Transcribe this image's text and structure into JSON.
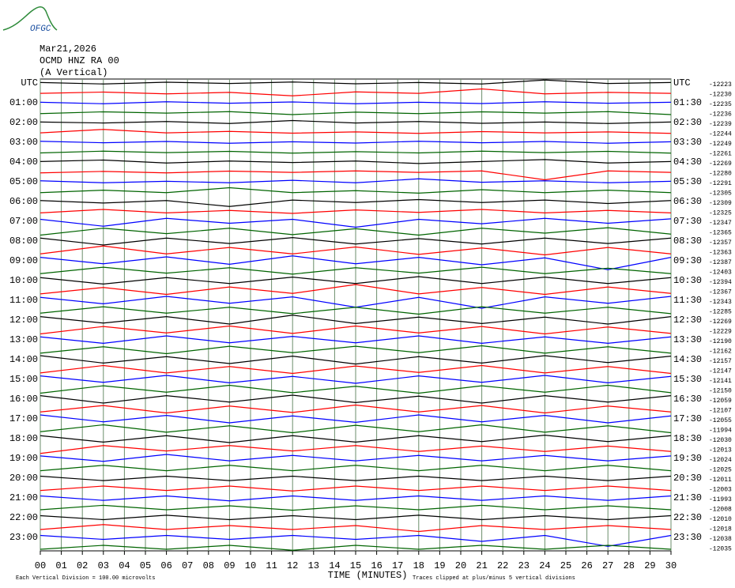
{
  "chart_data": {
    "type": "helicorder",
    "logo": "OFGC",
    "title": "Mar21,2026",
    "subtitle": [
      "OCMD HNZ RA 00",
      "(A Vertical)"
    ],
    "xlabel": "TIME (MINUTES)",
    "notes": [
      "Each Vertical Division =  100.00 microvolts",
      "Traces clipped at plus/minus 5 vertical divisions"
    ],
    "xlim": [
      0,
      30
    ],
    "xticks": [
      {
        "value": 0,
        "label": "00"
      },
      {
        "value": 1,
        "label": "01"
      },
      {
        "value": 2,
        "label": "02"
      },
      {
        "value": 3,
        "label": "03"
      },
      {
        "value": 4,
        "label": "04"
      },
      {
        "value": 5,
        "label": "05"
      },
      {
        "value": 6,
        "label": "06"
      },
      {
        "value": 7,
        "label": "07"
      },
      {
        "value": 8,
        "label": "08"
      },
      {
        "value": 9,
        "label": "09"
      },
      10,
      11,
      12,
      13,
      14,
      15,
      16,
      17,
      18,
      19,
      20,
      21,
      22,
      23,
      24,
      25,
      26,
      27,
      28,
      29,
      30
    ],
    "row_labels": [
      {
        "left": "UTC",
        "right": "UTC"
      },
      {
        "left": "01:00",
        "right": "01:30"
      },
      {
        "left": "02:00",
        "right": "02:30"
      },
      {
        "left": "03:00",
        "right": "03:30"
      },
      {
        "left": "04:00",
        "right": "04:30"
      },
      {
        "left": "05:00",
        "right": "05:30"
      },
      {
        "left": "06:00",
        "right": "06:30"
      },
      {
        "left": "07:00",
        "right": "07:30"
      },
      {
        "left": "08:00",
        "right": "08:30"
      },
      {
        "left": "09:00",
        "right": "09:30"
      },
      {
        "left": "10:00",
        "right": "10:30"
      },
      {
        "left": "11:00",
        "right": "11:30"
      },
      {
        "left": "12:00",
        "right": "12:30"
      },
      {
        "left": "13:00",
        "right": "13:30"
      },
      {
        "left": "14:00",
        "right": "14:30"
      },
      {
        "left": "15:00",
        "right": "15:30"
      },
      {
        "left": "16:00",
        "right": "16:30"
      },
      {
        "left": "17:00",
        "right": "17:30"
      },
      {
        "left": "18:00",
        "right": "18:30"
      },
      {
        "left": "19:00",
        "right": "19:30"
      },
      {
        "left": "20:00",
        "right": "20:30"
      },
      {
        "left": "21:00",
        "right": "21:30"
      },
      {
        "left": "22:00",
        "right": "22:30"
      },
      {
        "left": "23:00",
        "right": "23:30"
      }
    ],
    "x": [
      0,
      3,
      6,
      9,
      12,
      15,
      18,
      21,
      24,
      27,
      30
    ],
    "series": [
      {
        "color": "#000000",
        "offset": -12223,
        "values": [
          0.05,
          -0.1,
          0.08,
          -0.05,
          0.1,
          -0.08,
          0.05,
          -0.1,
          0.3,
          -0.05,
          0.05
        ]
      },
      {
        "color": "#ff0000",
        "offset": -12230,
        "values": [
          -0.05,
          0.08,
          -0.1,
          0.05,
          -0.3,
          0.1,
          -0.05,
          0.4,
          -0.1,
          0.05,
          -0.05
        ]
      },
      {
        "color": "#0000ff",
        "offset": -12235,
        "values": [
          0.05,
          -0.1,
          0.1,
          -0.05,
          0.08,
          -0.1,
          0.05,
          -0.08,
          0.1,
          -0.05,
          0.05
        ]
      },
      {
        "color": "#006400",
        "offset": -12236,
        "values": [
          -0.1,
          0.08,
          -0.05,
          0.1,
          -0.2,
          0.05,
          -0.1,
          0.08,
          -0.05,
          0.1,
          -0.2
        ]
      },
      {
        "color": "#000000",
        "offset": -12239,
        "values": [
          0.05,
          -0.05,
          0.1,
          -0.1,
          0.2,
          -0.05,
          0.1,
          -0.08,
          0.05,
          -0.1,
          0.05
        ]
      },
      {
        "color": "#ff0000",
        "offset": -12244,
        "values": [
          -0.05,
          0.3,
          -0.05,
          0.1,
          -0.08,
          0.05,
          -0.1,
          0.08,
          -0.05,
          0.05,
          -0.1
        ]
      },
      {
        "color": "#0000ff",
        "offset": -12249,
        "values": [
          0.1,
          -0.05,
          0.08,
          -0.1,
          0.05,
          -0.08,
          0.1,
          -0.05,
          0.08,
          -0.1,
          0.05
        ]
      },
      {
        "color": "#006400",
        "offset": -12261,
        "values": [
          -0.08,
          0.1,
          -0.05,
          0.08,
          -0.1,
          0.05,
          -0.08,
          0.1,
          -0.05,
          0.08,
          -0.1
        ]
      },
      {
        "color": "#000000",
        "offset": -12269,
        "values": [
          0.05,
          0.2,
          -0.1,
          0.1,
          -0.05,
          0.1,
          -0.15,
          0.05,
          0.25,
          -0.1,
          0.05
        ]
      },
      {
        "color": "#ff0000",
        "offset": -12280,
        "values": [
          -0.1,
          0.05,
          -0.1,
          0.08,
          -0.05,
          0.1,
          -0.05,
          0.1,
          -0.8,
          0.1,
          -0.05
        ]
      },
      {
        "color": "#0000ff",
        "offset": -12291,
        "values": [
          0.1,
          -0.1,
          0.05,
          -0.1,
          0.15,
          -0.1,
          0.3,
          -0.05,
          0.1,
          -0.1,
          0.05
        ]
      },
      {
        "color": "#006400",
        "offset": -12305,
        "values": [
          -0.1,
          0.15,
          -0.1,
          0.4,
          -0.1,
          0.1,
          -0.15,
          0.2,
          -0.1,
          0.15,
          -0.1
        ]
      },
      {
        "color": "#000000",
        "offset": -12309,
        "values": [
          0.1,
          -0.15,
          0.1,
          -0.5,
          0.15,
          -0.1,
          0.2,
          -0.1,
          0.15,
          -0.2,
          0.1
        ]
      },
      {
        "color": "#ff0000",
        "offset": -12325,
        "values": [
          -0.15,
          0.2,
          -0.15,
          0.1,
          -0.2,
          0.15,
          -0.1,
          0.2,
          -0.15,
          0.1,
          -0.15
        ]
      },
      {
        "color": "#0000ff",
        "offset": -12347,
        "values": [
          0.2,
          -0.5,
          0.3,
          -0.2,
          0.2,
          -0.6,
          0.2,
          -0.25,
          0.3,
          -0.2,
          0.25
        ]
      },
      {
        "color": "#006400",
        "offset": -12365,
        "values": [
          -0.4,
          0.3,
          -0.25,
          0.3,
          -0.35,
          0.25,
          -0.4,
          0.3,
          -0.2,
          0.35,
          -0.3
        ]
      },
      {
        "color": "#000000",
        "offset": -12357,
        "values": [
          0.3,
          -0.4,
          0.3,
          -0.25,
          0.35,
          -0.3,
          0.25,
          -0.3,
          0.3,
          -0.25,
          0.3
        ]
      },
      {
        "color": "#ff0000",
        "offset": -12363,
        "values": [
          -0.3,
          0.5,
          -0.3,
          0.35,
          -0.3,
          0.4,
          -0.35,
          0.3,
          -0.4,
          0.35,
          -0.3
        ]
      },
      {
        "color": "#0000ff",
        "offset": -12387,
        "values": [
          0.35,
          -0.3,
          0.4,
          -0.35,
          0.5,
          -0.3,
          0.35,
          -0.4,
          0.3,
          -0.9,
          0.35
        ]
      },
      {
        "color": "#006400",
        "offset": -12403,
        "values": [
          -0.3,
          0.35,
          -0.25,
          0.3,
          -0.35,
          0.3,
          -0.25,
          0.35,
          -0.3,
          0.25,
          -0.3
        ]
      },
      {
        "color": "#000000",
        "offset": -12394,
        "values": [
          0.3,
          -0.35,
          0.3,
          -0.3,
          0.35,
          -0.3,
          0.4,
          -0.3,
          0.35,
          -0.3,
          0.3
        ]
      },
      {
        "color": "#ff0000",
        "offset": -12367,
        "values": [
          -0.35,
          0.3,
          -0.4,
          0.35,
          -0.3,
          0.6,
          -0.35,
          0.3,
          -0.4,
          0.35,
          -0.3
        ]
      },
      {
        "color": "#0000ff",
        "offset": -12343,
        "values": [
          0.3,
          -0.35,
          0.4,
          -0.3,
          0.35,
          -0.7,
          0.3,
          -0.8,
          0.35,
          -0.3,
          0.4
        ]
      },
      {
        "color": "#006400",
        "offset": -12285,
        "values": [
          -0.3,
          0.35,
          -0.3,
          0.3,
          -0.35,
          0.3,
          -0.4,
          0.35,
          -0.3,
          0.3,
          -0.35
        ]
      },
      {
        "color": "#000000",
        "offset": -12269,
        "values": [
          0.35,
          -0.3,
          0.35,
          -0.4,
          0.5,
          -0.35,
          0.3,
          -0.35,
          0.3,
          -0.4,
          0.35
        ]
      },
      {
        "color": "#ff0000",
        "offset": -12229,
        "values": [
          -0.4,
          0.35,
          -0.3,
          0.4,
          -0.35,
          0.4,
          -0.3,
          0.35,
          -0.4,
          0.3,
          -0.35
        ]
      },
      {
        "color": "#0000ff",
        "offset": -12190,
        "values": [
          0.3,
          -0.35,
          0.4,
          -0.3,
          0.35,
          -0.3,
          0.4,
          -0.35,
          0.3,
          -0.35,
          0.3
        ]
      },
      {
        "color": "#006400",
        "offset": -12162,
        "values": [
          -0.35,
          0.3,
          -0.4,
          0.35,
          -0.3,
          0.35,
          -0.3,
          0.4,
          -0.35,
          0.3,
          -0.35
        ]
      },
      {
        "color": "#000000",
        "offset": -12157,
        "values": [
          0.4,
          -0.35,
          0.3,
          -0.4,
          0.35,
          -0.45,
          0.3,
          -0.35,
          0.4,
          -0.3,
          0.35
        ]
      },
      {
        "color": "#ff0000",
        "offset": -12147,
        "values": [
          -0.35,
          0.4,
          -0.35,
          0.3,
          -0.4,
          0.35,
          -0.3,
          0.4,
          -0.35,
          0.3,
          -0.4
        ]
      },
      {
        "color": "#0000ff",
        "offset": -12141,
        "values": [
          0.35,
          -0.3,
          0.4,
          -0.35,
          0.3,
          -0.4,
          0.35,
          -0.3,
          0.4,
          -0.35,
          0.3
        ]
      },
      {
        "color": "#006400",
        "offset": -12150,
        "values": [
          -0.4,
          0.35,
          -0.3,
          0.4,
          -0.35,
          0.3,
          -0.4,
          0.35,
          -0.3,
          0.4,
          -0.35
        ]
      },
      {
        "color": "#000000",
        "offset": -12059,
        "values": [
          0.35,
          -0.4,
          0.35,
          -0.3,
          0.4,
          -0.35,
          0.3,
          -0.4,
          0.35,
          -0.3,
          0.35
        ]
      },
      {
        "color": "#ff0000",
        "offset": -12107,
        "values": [
          -0.3,
          0.35,
          -0.4,
          0.3,
          -0.35,
          0.4,
          -0.3,
          0.35,
          -0.4,
          0.3,
          -0.3
        ]
      },
      {
        "color": "#0000ff",
        "offset": -12055,
        "values": [
          0.4,
          -0.3,
          0.35,
          -0.4,
          0.3,
          -0.35,
          0.4,
          -0.3,
          0.35,
          -0.4,
          0.3
        ]
      },
      {
        "color": "#006400",
        "offset": -11994,
        "values": [
          -0.3,
          0.4,
          -0.35,
          0.3,
          -0.4,
          0.35,
          -0.3,
          0.4,
          -0.35,
          0.3,
          -0.4
        ]
      },
      {
        "color": "#000000",
        "offset": -12030,
        "values": [
          0.3,
          -0.35,
          0.3,
          -0.4,
          0.3,
          -0.35,
          0.3,
          -0.3,
          0.35,
          -0.3,
          0.3
        ]
      },
      {
        "color": "#ff0000",
        "offset": -12013,
        "values": [
          -0.5,
          0.3,
          -0.25,
          0.3,
          -0.25,
          0.3,
          -0.3,
          0.25,
          -0.3,
          0.25,
          -0.3
        ]
      },
      {
        "color": "#0000ff",
        "offset": -12024,
        "values": [
          0.25,
          -0.3,
          0.4,
          -0.25,
          0.3,
          -0.25,
          0.3,
          -0.25,
          0.3,
          -0.25,
          0.25
        ]
      },
      {
        "color": "#006400",
        "offset": -12025,
        "values": [
          -0.25,
          0.3,
          -0.25,
          0.3,
          -0.25,
          0.3,
          -0.25,
          0.3,
          -0.25,
          0.3,
          -0.25
        ]
      },
      {
        "color": "#000000",
        "offset": -12011,
        "values": [
          0.2,
          -0.25,
          0.2,
          -0.25,
          0.2,
          -0.25,
          0.2,
          -0.25,
          0.2,
          -0.25,
          0.2
        ]
      },
      {
        "color": "#ff0000",
        "offset": -12003,
        "values": [
          -0.25,
          0.2,
          -0.25,
          0.2,
          -0.3,
          0.2,
          -0.25,
          0.2,
          -0.25,
          0.2,
          -0.25
        ]
      },
      {
        "color": "#0000ff",
        "offset": -11993,
        "values": [
          0.2,
          -0.25,
          0.2,
          -0.3,
          0.2,
          -0.25,
          0.2,
          -0.25,
          0.2,
          -0.25,
          0.2
        ]
      },
      {
        "color": "#006400",
        "offset": -12008,
        "values": [
          -0.2,
          0.25,
          -0.2,
          0.2,
          -0.25,
          0.2,
          -0.2,
          0.25,
          -0.2,
          0.2,
          -0.2
        ]
      },
      {
        "color": "#000000",
        "offset": -12010,
        "values": [
          0.2,
          -0.2,
          0.25,
          -0.2,
          0.2,
          -0.2,
          0.25,
          -0.2,
          0.2,
          -0.2,
          0.2
        ]
      },
      {
        "color": "#ff0000",
        "offset": -12018,
        "values": [
          -0.2,
          0.3,
          -0.2,
          0.2,
          -0.2,
          0.2,
          -0.4,
          0.2,
          -0.2,
          0.2,
          -0.2
        ]
      },
      {
        "color": "#0000ff",
        "offset": -12038,
        "values": [
          0.2,
          -0.2,
          0.2,
          -0.2,
          0.2,
          -0.2,
          0.2,
          -0.4,
          0.2,
          -0.9,
          0.2
        ]
      },
      {
        "color": "#006400",
        "offset": -12035,
        "values": [
          -0.2,
          0.2,
          -0.2,
          0.2,
          -0.3,
          0.2,
          -0.2,
          0.2,
          -0.2,
          0.2,
          -0.2
        ]
      }
    ]
  }
}
